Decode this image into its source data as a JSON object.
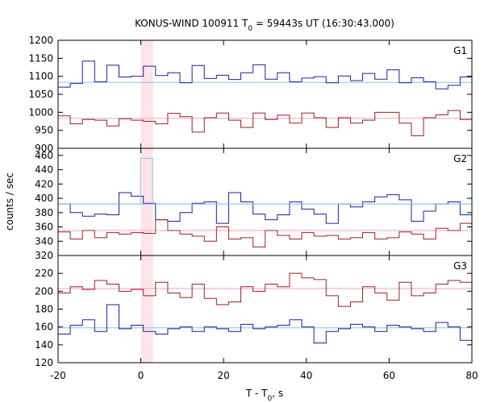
{
  "chart_data": {
    "type": "line",
    "title": {
      "instrument": "KONUS-WIND 100911 T",
      "title_sub": "0",
      "rest": " = 59443s UT (16:30:43.000)"
    },
    "xlabel": {
      "main": "T - T",
      "sub": "0",
      "suffix": ", s"
    },
    "ylabel": "counts / sec",
    "xlim": [
      -20,
      80
    ],
    "x_ticks": [
      -20,
      0,
      20,
      40,
      60,
      80
    ],
    "grid": false,
    "highlight_interval": [
      0,
      2.944
    ],
    "panels": [
      {
        "name": "G1",
        "ylim": [
          900,
          1200
        ],
        "y_ticks": [
          900,
          950,
          1000,
          1050,
          1100,
          1150,
          1200
        ],
        "series": [
          {
            "color": "#1f1fa0",
            "background": 1083,
            "bin_start": -20,
            "bin_width": 2.944,
            "values": [
              1070,
              1080,
              1142,
              1085,
              1131,
              1098,
              1100,
              1128,
              1102,
              1110,
              1082,
              1130,
              1094,
              1103,
              1091,
              1110,
              1132,
              1092,
              1110,
              1085,
              1095,
              1099,
              1082,
              1101,
              1088,
              1108,
              1092,
              1118,
              1082,
              1096,
              1085,
              1065,
              1075,
              1098,
              1077,
              1093
            ]
          },
          {
            "color": "#a01f1f",
            "background": 983,
            "bin_start": -20,
            "bin_width": 2.944,
            "values": [
              990,
              968,
              980,
              978,
              962,
              982,
              978,
              975,
              968,
              997,
              988,
              945,
              985,
              998,
              978,
              958,
              998,
              980,
              992,
              970,
              998,
              985,
              958,
              985,
              970,
              978,
              1000,
              1000,
              970,
              935,
              985,
              993,
              1005,
              980,
              988,
              970
            ]
          }
        ]
      },
      {
        "name": "G2",
        "ylim": [
          320,
          470
        ],
        "y_ticks": [
          320,
          340,
          360,
          380,
          400,
          420,
          440,
          460
        ],
        "series": [
          {
            "color": "#1f1fa0",
            "background": 392,
            "bin_start": -20,
            "bin_width": 2.944,
            "values": [
              392,
              380,
              375,
              378,
              377,
              408,
              403,
              393,
              370,
              368,
              380,
              393,
              395,
              365,
              408,
              395,
              378,
              370,
              377,
              395,
              385,
              378,
              365,
              392,
              388,
              395,
              402,
              405,
              398,
              368,
              382,
              392,
              395,
              377,
              412,
              392,
              380,
              392
            ]
          },
          {
            "color": "#80c8f0",
            "background": 392,
            "bin_start": -0.1,
            "bin_width": 2.944,
            "values": [
              456
            ]
          },
          {
            "color": "#a01f1f",
            "background": 355,
            "bin_start": -20,
            "bin_width": 2.944,
            "values": [
              353,
              343,
              355,
              345,
              352,
              350,
              352,
              351,
              370,
              355,
              350,
              347,
              340,
              360,
              343,
              345,
              332,
              355,
              348,
              343,
              352,
              347,
              348,
              343,
              345,
              352,
              343,
              345,
              353,
              350,
              343,
              358,
              355,
              365,
              352,
              365,
              345,
              352
            ]
          }
        ]
      },
      {
        "name": "G3",
        "ylim": [
          120,
          240
        ],
        "y_ticks": [
          120,
          140,
          160,
          180,
          200,
          220
        ],
        "series": [
          {
            "color": "#a01f1f",
            "background": 203,
            "bin_start": -20,
            "bin_width": 2.944,
            "values": [
              198,
              205,
              202,
              212,
              208,
              200,
              202,
              195,
              210,
              198,
              193,
              208,
              192,
              185,
              188,
              205,
              200,
              208,
              205,
              220,
              215,
              213,
              195,
              183,
              188,
              205,
              198,
              190,
              210,
              195,
              198,
              208,
              212,
              210,
              206,
              198,
              200,
              207
            ]
          },
          {
            "color": "#1f1fa0",
            "background": 159,
            "bin_start": -20,
            "bin_width": 2.944,
            "values": [
              152,
              162,
              168,
              155,
              185,
              158,
              162,
              155,
              152,
              158,
              160,
              155,
              160,
              158,
              155,
              163,
              158,
              160,
              162,
              168,
              160,
              142,
              155,
              158,
              163,
              160,
              155,
              162,
              160,
              158,
              155,
              165,
              160,
              145,
              155,
              170,
              145,
              158
            ]
          }
        ]
      }
    ]
  }
}
